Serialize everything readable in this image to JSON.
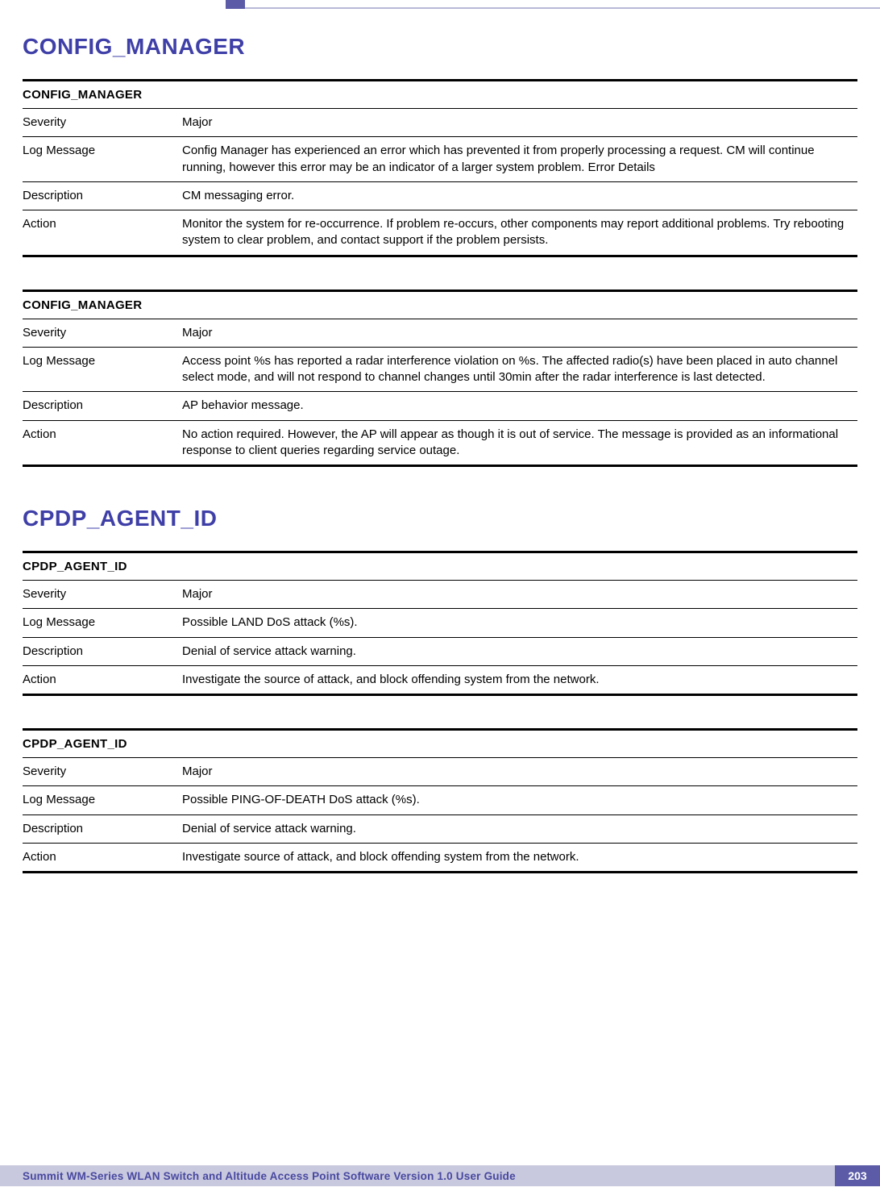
{
  "colors": {
    "heading": "#3f3fa8",
    "accent_bar": "#5b5ba8",
    "accent_light": "#b8b8d8",
    "footer_bg": "#c8c8de",
    "footer_text_color": "#4848a0",
    "text": "#000000",
    "page_bg": "#ffffff"
  },
  "headings": {
    "h1a": "CONFIG_MANAGER",
    "h1b": "CPDP_AGENT_ID"
  },
  "labels": {
    "severity": "Severity",
    "log_message": "Log Message",
    "description": "Description",
    "action": "Action"
  },
  "blocks": [
    {
      "title": "CONFIG_MANAGER",
      "severity": "Major",
      "log_message": "Config Manager has experienced an error which has prevented it from properly processing a request. CM will continue running, however this error may be an indicator of a larger system problem. Error Details",
      "description": "CM messaging error.",
      "action": "Monitor the system for re-occurrence. If problem re-occurs, other components may report additional problems. Try rebooting system to clear problem, and contact support if the problem persists."
    },
    {
      "title": "CONFIG_MANAGER",
      "severity": "Major",
      "log_message": "Access point %s has reported a radar interference violation on %s. The affected radio(s) have been placed in auto channel select mode, and will not respond to channel changes until 30min after the radar interference is last detected.",
      "description": "AP behavior message.",
      "action": "No action required. However, the AP will appear as though it is out of service. The message is provided as an informational response to client queries regarding service outage."
    },
    {
      "title": "CPDP_AGENT_ID",
      "severity": "Major",
      "log_message": "Possible LAND DoS attack (%s).",
      "description": "Denial of service attack warning.",
      "action": "Investigate the source of attack, and block offending system from the network."
    },
    {
      "title": "CPDP_AGENT_ID",
      "severity": "Major",
      "log_message": "Possible PING-OF-DEATH DoS attack (%s).",
      "description": "Denial of service attack warning.",
      "action": "Investigate source of attack, and block offending system from the network."
    }
  ],
  "footer": {
    "text": "Summit WM-Series WLAN Switch and Altitude Access Point Software Version 1.0 User Guide",
    "page": "203"
  }
}
